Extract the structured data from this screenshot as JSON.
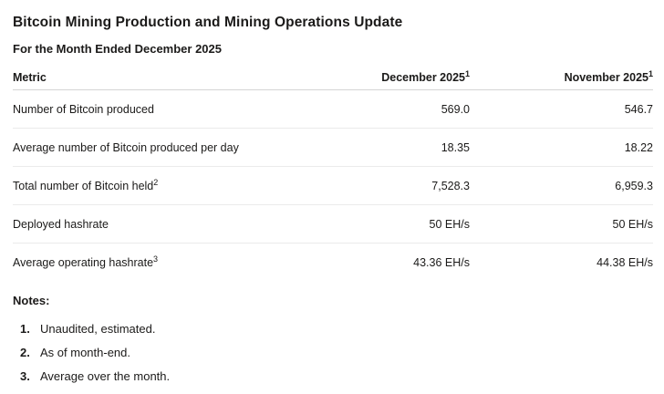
{
  "report": {
    "title": "Bitcoin Mining Production and Mining Operations Update",
    "subtitle": "For the Month Ended December 2025"
  },
  "table": {
    "columns": [
      {
        "label": "Metric"
      },
      {
        "label": "December 2025",
        "sup": "1"
      },
      {
        "label": "November 2025",
        "sup": "1"
      }
    ],
    "rows": [
      {
        "metric": "Number of Bitcoin produced",
        "december": "569.0",
        "november": "546.7"
      },
      {
        "metric": "Average number of Bitcoin produced per day",
        "december": "18.35",
        "november": "18.22"
      },
      {
        "metric": "Total number of Bitcoin held",
        "sup": "2",
        "december": "7,528.3",
        "november": "6,959.3"
      },
      {
        "metric": "Deployed hashrate",
        "december": "50 EH/s",
        "november": "50 EH/s"
      },
      {
        "metric": "Average operating hashrate",
        "sup": "3",
        "december": "43.36 EH/s",
        "november": "44.38 EH/s"
      }
    ]
  },
  "notes": {
    "heading": "Notes:",
    "items": [
      {
        "number": "1.",
        "text": "Unaudited, estimated."
      },
      {
        "number": "2.",
        "text": "As of month-end."
      },
      {
        "number": "3.",
        "text": "Average over the month."
      }
    ]
  },
  "colors": {
    "text": "#1b1a19",
    "header_border": "#d4d4d4",
    "row_border": "#ebebeb",
    "background": "#ffffff"
  }
}
